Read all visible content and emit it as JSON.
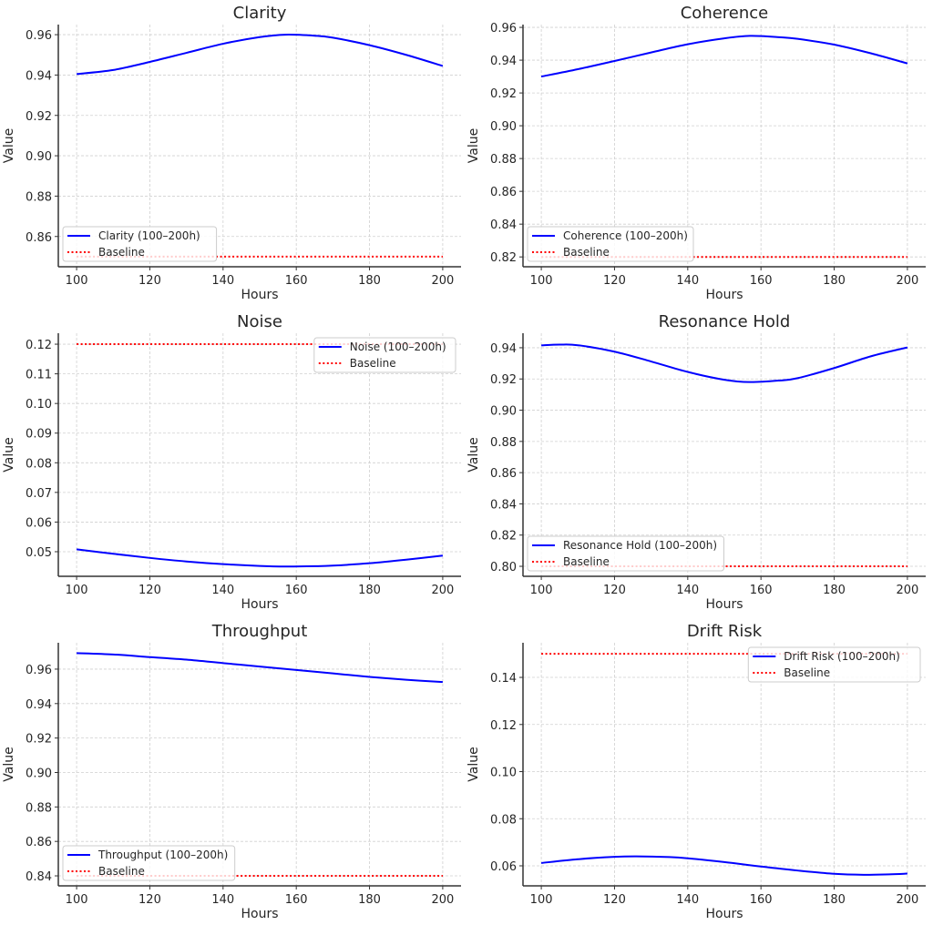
{
  "chart_data": [
    {
      "type": "line",
      "title": "Clarity",
      "xlabel": "Hours",
      "ylabel": "Value",
      "xlim": [
        95,
        205
      ],
      "ylim": [
        0.845,
        0.965
      ],
      "xticks": [
        100,
        120,
        140,
        160,
        180,
        200
      ],
      "yticks": [
        0.86,
        0.88,
        0.9,
        0.92,
        0.94,
        0.96
      ],
      "grid": true,
      "legend": "lower-left",
      "series": [
        {
          "name": "Clarity (100–200h)",
          "style": "solid",
          "color": "#0000ff",
          "x": [
            100,
            110,
            120,
            130,
            140,
            150,
            157,
            165,
            170,
            180,
            190,
            200
          ],
          "y": [
            0.9405,
            0.9425,
            0.9465,
            0.951,
            0.9555,
            0.9588,
            0.96,
            0.9595,
            0.9585,
            0.9548,
            0.95,
            0.9445
          ]
        },
        {
          "name": "Baseline",
          "style": "dotted",
          "color": "#ff0000",
          "x": [
            100,
            200
          ],
          "y": [
            0.85,
            0.85
          ]
        }
      ]
    },
    {
      "type": "line",
      "title": "Coherence",
      "xlabel": "Hours",
      "ylabel": "Value",
      "xlim": [
        95,
        205
      ],
      "ylim": [
        0.814,
        0.9617
      ],
      "xticks": [
        100,
        120,
        140,
        160,
        180,
        200
      ],
      "yticks": [
        0.82,
        0.84,
        0.86,
        0.88,
        0.9,
        0.92,
        0.94,
        0.96
      ],
      "grid": true,
      "legend": "lower-left",
      "series": [
        {
          "name": "Coherence (100–200h)",
          "style": "solid",
          "color": "#0000ff",
          "x": [
            100,
            110,
            120,
            130,
            140,
            150,
            157,
            165,
            170,
            180,
            190,
            200
          ],
          "y": [
            0.93,
            0.9345,
            0.9395,
            0.9447,
            0.9497,
            0.9533,
            0.9548,
            0.954,
            0.953,
            0.9495,
            0.9442,
            0.938
          ]
        },
        {
          "name": "Baseline",
          "style": "dotted",
          "color": "#ff0000",
          "x": [
            100,
            200
          ],
          "y": [
            0.82,
            0.82
          ]
        }
      ]
    },
    {
      "type": "line",
      "title": "Noise",
      "xlabel": "Hours",
      "ylabel": "Value",
      "xlim": [
        95,
        205
      ],
      "ylim": [
        0.0417,
        0.1237
      ],
      "xticks": [
        100,
        120,
        140,
        160,
        180,
        200
      ],
      "yticks": [
        0.05,
        0.06,
        0.07,
        0.08,
        0.09,
        0.1,
        0.11,
        0.12
      ],
      "grid": true,
      "legend": "upper-right",
      "series": [
        {
          "name": "Noise (100–200h)",
          "style": "solid",
          "color": "#0000ff",
          "x": [
            100,
            110,
            120,
            130,
            140,
            150,
            157,
            165,
            170,
            180,
            190,
            200
          ],
          "y": [
            0.0508,
            0.0493,
            0.0479,
            0.0467,
            0.0458,
            0.0452,
            0.045,
            0.0451,
            0.0453,
            0.0461,
            0.0473,
            0.0487
          ]
        },
        {
          "name": "Baseline",
          "style": "dotted",
          "color": "#ff0000",
          "x": [
            100,
            200
          ],
          "y": [
            0.12,
            0.12
          ]
        }
      ]
    },
    {
      "type": "line",
      "title": "Resonance Hold",
      "xlabel": "Hours",
      "ylabel": "Value",
      "xlim": [
        95,
        205
      ],
      "ylim": [
        0.7936,
        0.9493
      ],
      "xticks": [
        100,
        120,
        140,
        160,
        180,
        200
      ],
      "yticks": [
        0.8,
        0.82,
        0.84,
        0.86,
        0.88,
        0.9,
        0.92,
        0.94
      ],
      "grid": true,
      "legend": "lower-left",
      "series": [
        {
          "name": "Resonance Hold (100–200h)",
          "style": "solid",
          "color": "#0000ff",
          "x": [
            100,
            105,
            110,
            120,
            130,
            140,
            150,
            157,
            165,
            170,
            180,
            190,
            200
          ],
          "y": [
            0.9415,
            0.942,
            0.9416,
            0.9375,
            0.9312,
            0.9245,
            0.9195,
            0.918,
            0.919,
            0.9205,
            0.927,
            0.9345,
            0.9402
          ]
        },
        {
          "name": "Baseline",
          "style": "dotted",
          "color": "#ff0000",
          "x": [
            100,
            200
          ],
          "y": [
            0.8,
            0.8
          ]
        }
      ]
    },
    {
      "type": "line",
      "title": "Throughput",
      "xlabel": "Hours",
      "ylabel": "Value",
      "xlim": [
        95,
        205
      ],
      "ylim": [
        0.8342,
        0.9753
      ],
      "xticks": [
        100,
        120,
        140,
        160,
        180,
        200
      ],
      "yticks": [
        0.84,
        0.86,
        0.88,
        0.9,
        0.92,
        0.94,
        0.96
      ],
      "grid": true,
      "legend": "lower-left",
      "series": [
        {
          "name": "Throughput (100–200h)",
          "style": "solid",
          "color": "#0000ff",
          "x": [
            100,
            110,
            120,
            130,
            140,
            150,
            160,
            170,
            180,
            190,
            200
          ],
          "y": [
            0.9693,
            0.9685,
            0.967,
            0.9655,
            0.9635,
            0.9615,
            0.9595,
            0.9575,
            0.9555,
            0.9538,
            0.9525
          ]
        },
        {
          "name": "Baseline",
          "style": "dotted",
          "color": "#ff0000",
          "x": [
            100,
            200
          ],
          "y": [
            0.84,
            0.84
          ]
        }
      ]
    },
    {
      "type": "line",
      "title": "Drift Risk",
      "xlabel": "Hours",
      "ylabel": "Value",
      "xlim": [
        95,
        205
      ],
      "ylim": [
        0.0515,
        0.1547
      ],
      "xticks": [
        100,
        120,
        140,
        160,
        180,
        200
      ],
      "yticks": [
        0.06,
        0.08,
        0.1,
        0.12,
        0.14
      ],
      "grid": true,
      "legend": "upper-right",
      "series": [
        {
          "name": "Drift Risk (100–200h)",
          "style": "solid",
          "color": "#0000ff",
          "x": [
            100,
            110,
            120,
            126,
            135,
            140,
            150,
            160,
            170,
            180,
            188,
            195,
            200
          ],
          "y": [
            0.0612,
            0.0628,
            0.0638,
            0.064,
            0.0637,
            0.0632,
            0.0616,
            0.0597,
            0.058,
            0.0566,
            0.0562,
            0.0564,
            0.0567
          ]
        },
        {
          "name": "Baseline",
          "style": "dotted",
          "color": "#ff0000",
          "x": [
            100,
            200
          ],
          "y": [
            0.15,
            0.15
          ]
        }
      ]
    }
  ]
}
